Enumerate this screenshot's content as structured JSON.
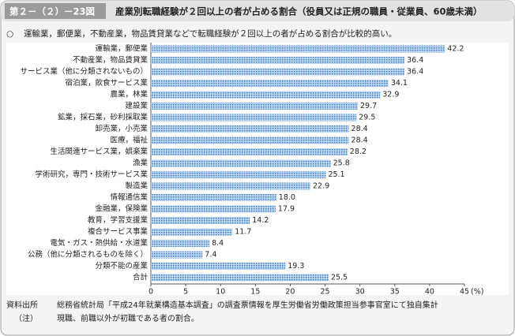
{
  "header": {
    "figure_number": "第２－（２）－23図",
    "title": "産業別転職経験が２回以上の者が占める割合（役員又は正規の職員・従業員、60歳未満）"
  },
  "summary": {
    "bullet": "○",
    "text": "運輸業，郵便業，不動産業，物品賃貸業などで転職経験が２回以上の者が占める割合が比較的高い。"
  },
  "chart_data": {
    "type": "bar",
    "categories": [
      "運輸業，郵便業",
      "不動産業，物品賃貸業",
      "サービス業（他に分類されないもの）",
      "宿泊業，飲食サービス業",
      "農業，林業",
      "建設業",
      "鉱業，採石業，砂利採取業",
      "卸売業，小売業",
      "医療，福祉",
      "生活関連サービス業，娯楽業",
      "漁業",
      "学術研究，専門・技術サービス業",
      "製造業",
      "情報通信業",
      "金融業，保険業",
      "教育，学習支援業",
      "複合サービス事業",
      "電気・ガス・熱供給・水道業",
      "公務（他に分類されるものを除く）",
      "分類不能の産業",
      "合計"
    ],
    "values": [
      42.2,
      36.4,
      36.4,
      34.1,
      32.9,
      29.7,
      29.5,
      28.4,
      28.4,
      28.2,
      25.8,
      25.1,
      22.9,
      18.0,
      17.9,
      14.2,
      11.7,
      8.4,
      7.4,
      19.3,
      25.5
    ],
    "value_labels": [
      "42.2",
      "36.4",
      "36.4",
      "34.1",
      "32.9",
      "29.7",
      "29.5",
      "28.4",
      "28.4",
      "28.2",
      "25.8",
      "25.1",
      "22.9",
      "18.0",
      "17.9",
      "14.2",
      "11.7",
      "8.4",
      "7.4",
      "19.3",
      "25.5"
    ],
    "color": "#3d7ec6",
    "xlim": [
      0,
      45
    ],
    "xticks": [
      0,
      5,
      10,
      15,
      20,
      25,
      30,
      35,
      40,
      45
    ],
    "x_unit": "(%)"
  },
  "notes": [
    {
      "label": "資料出所",
      "text": "総務省統計局「平成24年就業構造基本調査」の調査票情報を厚生労働省労働政策担当参事官室にて独自集計"
    },
    {
      "label": "（注）",
      "text": "現職、前職以外が初職である者の割合。"
    }
  ]
}
